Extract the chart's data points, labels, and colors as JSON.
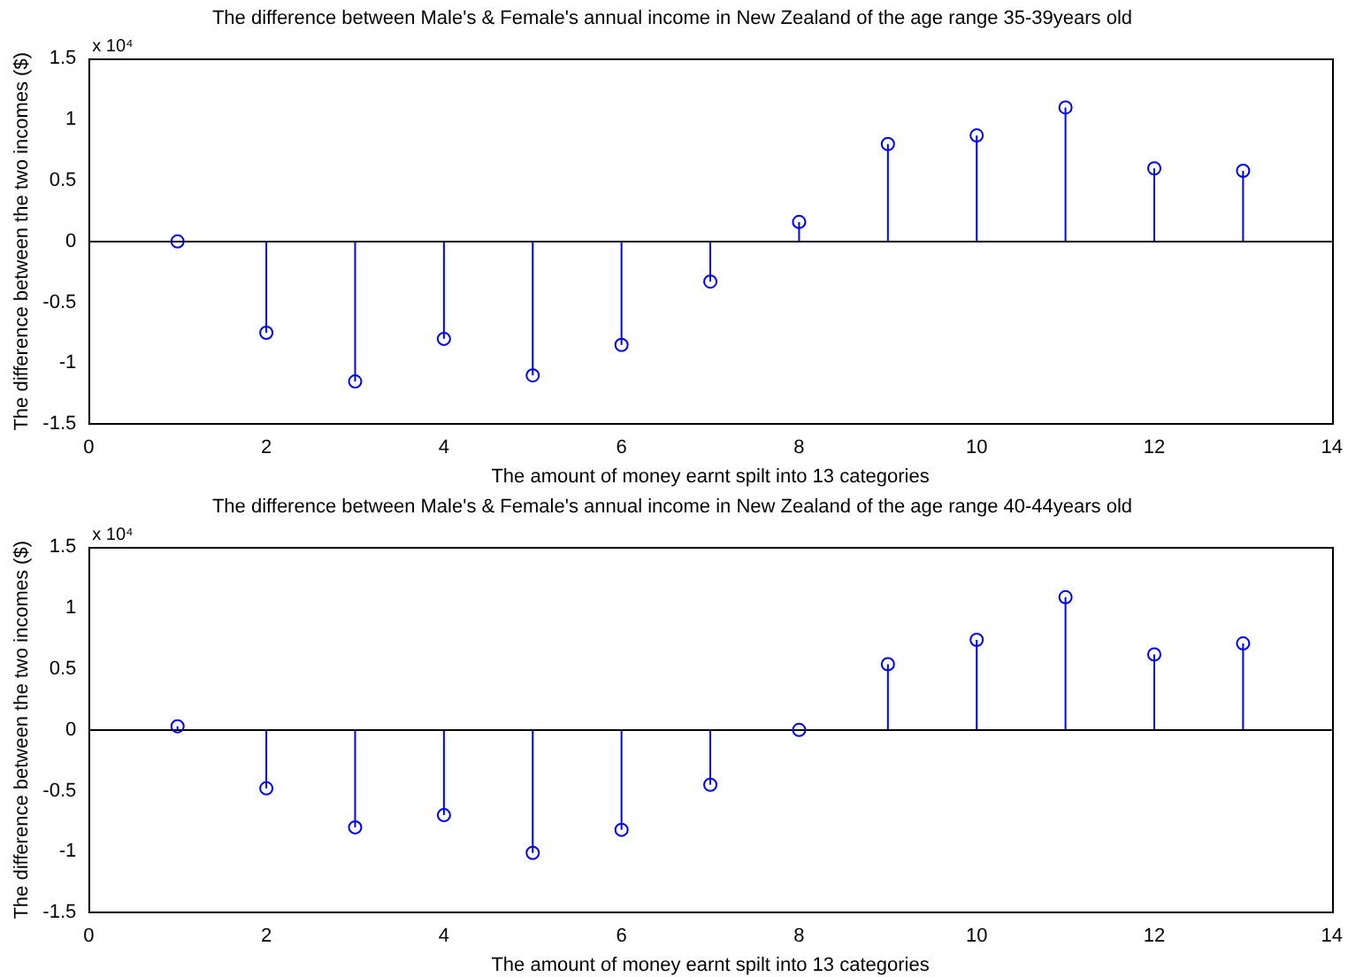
{
  "chart_data": [
    {
      "type": "lollipop",
      "title": "The difference between Male's & Female's annual income in New Zealand of the age range 35-39years old",
      "xlabel": "The amount of money earnt spilt into 13 categories",
      "ylabel": "The difference between the two incomes ($)",
      "annotations": [
        "x 10⁴"
      ],
      "x": [
        1,
        2,
        3,
        4,
        5,
        6,
        7,
        8,
        9,
        10,
        11,
        12,
        13
      ],
      "series": [
        {
          "color": "#0000ff",
          "values": [
            0,
            -0.75,
            -1.15,
            -0.8,
            -1.1,
            -0.85,
            -0.33,
            0.16,
            0.8,
            0.87,
            1.1,
            0.6,
            0.58
          ]
        }
      ],
      "xlim": [
        0,
        14
      ],
      "xticks": [
        0,
        2,
        4,
        6,
        8,
        10,
        12,
        14
      ],
      "ylim": [
        -1.5,
        1.5
      ],
      "yticks": [
        -1.5,
        -1,
        -0.5,
        0,
        0.5,
        1,
        1.5
      ],
      "ref_lines": [
        {
          "axis": "y",
          "value": 0,
          "color": "#000000"
        }
      ],
      "marker": "circle",
      "grid": false,
      "legend": false
    },
    {
      "type": "lollipop",
      "title": "The difference between Male's & Female's annual income in New Zealand of the age range 40-44years old",
      "xlabel": "The amount of money earnt spilt into 13 categories",
      "ylabel": "The difference between the two incomes ($)",
      "annotations": [
        "x 10⁴"
      ],
      "x": [
        1,
        2,
        3,
        4,
        5,
        6,
        7,
        8,
        9,
        10,
        11,
        12,
        13
      ],
      "series": [
        {
          "color": "#0000ff",
          "values": [
            0.03,
            -0.48,
            -0.8,
            -0.7,
            -1.01,
            -0.82,
            -0.45,
            0,
            0.54,
            0.74,
            1.09,
            0.62,
            0.71
          ]
        }
      ],
      "xlim": [
        0,
        14
      ],
      "xticks": [
        0,
        2,
        4,
        6,
        8,
        10,
        12,
        14
      ],
      "ylim": [
        -1.5,
        1.5
      ],
      "yticks": [
        -1.5,
        -1,
        -0.5,
        0,
        0.5,
        1,
        1.5
      ],
      "ref_lines": [
        {
          "axis": "y",
          "value": 0,
          "color": "#000000"
        }
      ],
      "marker": "circle",
      "grid": false,
      "legend": false
    }
  ]
}
